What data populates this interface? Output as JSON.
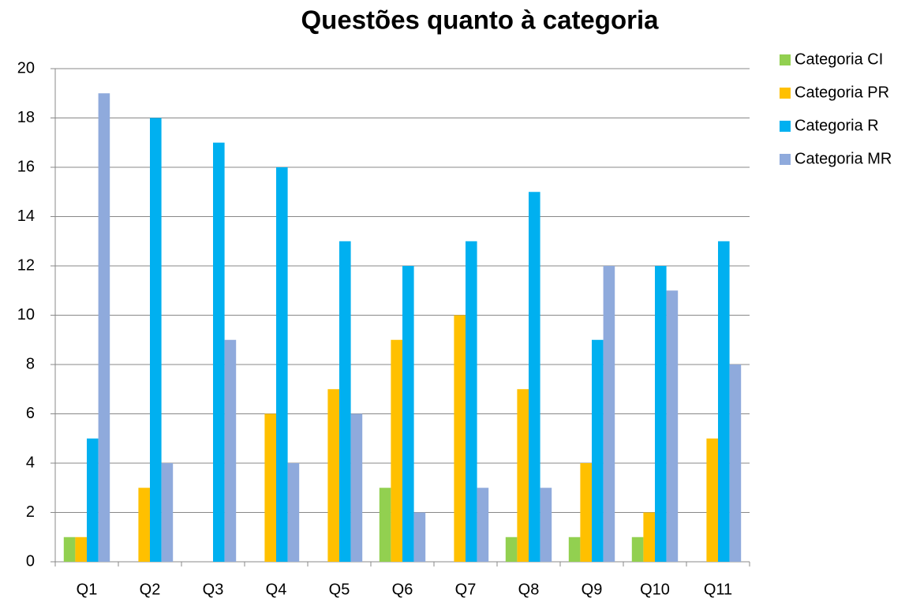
{
  "chart_data": {
    "type": "bar",
    "title": "Questões quanto à categoria",
    "categories": [
      "Q1",
      "Q2",
      "Q3",
      "Q4",
      "Q5",
      "Q6",
      "Q7",
      "Q8",
      "Q9",
      "Q10",
      "Q11"
    ],
    "series": [
      {
        "name": "Categoria CI",
        "color": "#92d050",
        "values": [
          1,
          0,
          0,
          0,
          0,
          3,
          0,
          1,
          1,
          1,
          0
        ]
      },
      {
        "name": "Categoria PR",
        "color": "#ffc000",
        "values": [
          1,
          3,
          0,
          6,
          7,
          9,
          10,
          7,
          4,
          2,
          5
        ]
      },
      {
        "name": "Categoria R",
        "color": "#00b0f0",
        "values": [
          5,
          18,
          17,
          16,
          13,
          12,
          13,
          15,
          9,
          12,
          13
        ]
      },
      {
        "name": "Categoria MR",
        "color": "#8faadc",
        "values": [
          19,
          4,
          9,
          4,
          6,
          2,
          3,
          3,
          12,
          11,
          8
        ]
      }
    ],
    "ylim": [
      0,
      20
    ],
    "yticks": [
      0,
      2,
      4,
      6,
      8,
      10,
      12,
      14,
      16,
      18,
      20
    ],
    "grid": true,
    "legend": "right"
  }
}
